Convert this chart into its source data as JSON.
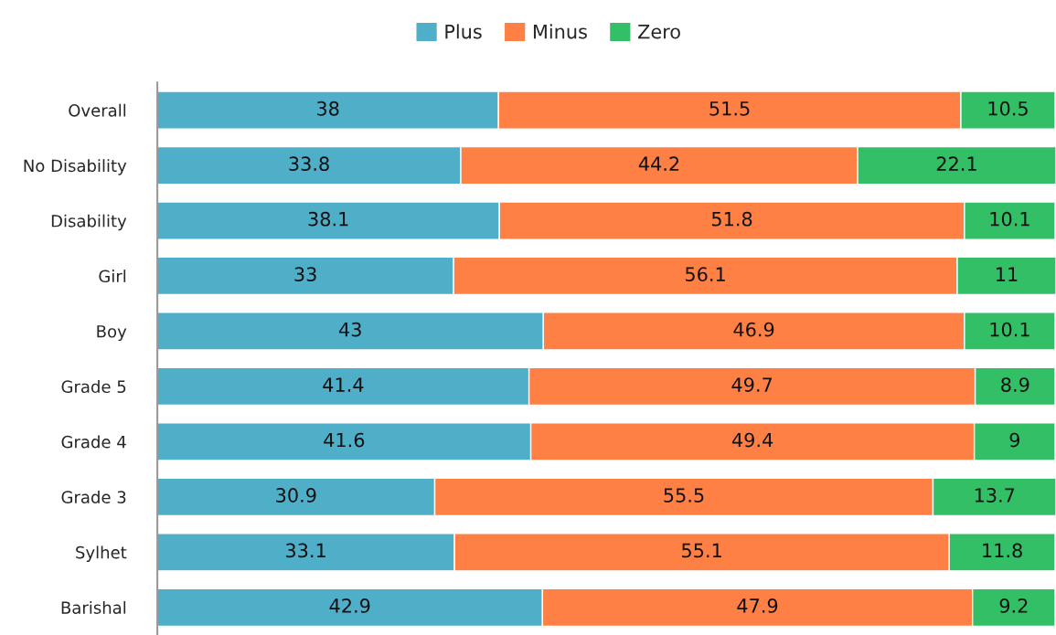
{
  "chart_data": {
    "type": "bar",
    "orientation": "horizontal",
    "stacked": true,
    "data_labels": true,
    "legend": "top",
    "grid": false,
    "categories": [
      "Overall",
      "No Disability",
      "Disability",
      "Girl",
      "Boy",
      "Grade 5",
      "Grade 4",
      "Grade 3",
      "Sylhet",
      "Barishal"
    ],
    "series": [
      {
        "name": "Plus",
        "color": "#4fafc9",
        "values": [
          38,
          33.8,
          38.1,
          33,
          43,
          41.4,
          41.6,
          30.9,
          33.1,
          42.9
        ]
      },
      {
        "name": "Minus",
        "color": "#ff8044",
        "values": [
          51.5,
          44.2,
          51.8,
          56.1,
          46.9,
          49.7,
          49.4,
          55.5,
          55.1,
          47.9
        ]
      },
      {
        "name": "Zero",
        "color": "#33bf66",
        "values": [
          10.5,
          22.1,
          10.1,
          11,
          10.1,
          8.9,
          9,
          13.7,
          11.8,
          9.2
        ]
      }
    ]
  }
}
